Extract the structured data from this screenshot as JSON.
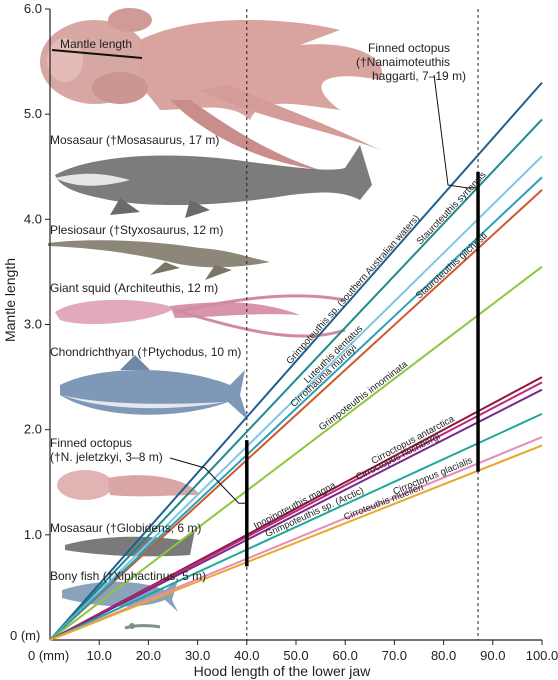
{
  "chart_data": {
    "type": "line",
    "xlabel": "Hood length of the lower jaw",
    "ylabel": "Mantle length",
    "x_origin_label": "0 (mm)",
    "y_origin_label": "0 (m)",
    "xlim": [
      0,
      100
    ],
    "ylim": [
      0,
      6
    ],
    "x_ticks": [
      "10.0",
      "20.0",
      "30.0",
      "40.0",
      "50.0",
      "60.0",
      "70.0",
      "80.0",
      "90.0",
      "100.0"
    ],
    "y_ticks": [
      "1.0",
      "2.0",
      "3.0",
      "4.0",
      "5.0",
      "6.0"
    ],
    "grid": false,
    "reference_lines_x": [
      40,
      87
    ],
    "series": [
      {
        "name": "Grimpoteuthis sp. (southern Australian waters)",
        "color": "#1f5f8f",
        "x": [
          0,
          100
        ],
        "y": [
          0,
          5.3
        ]
      },
      {
        "name": "Stauroteuthis syrtensis",
        "color": "#1e8a8a",
        "x": [
          0,
          100
        ],
        "y": [
          0,
          4.95
        ]
      },
      {
        "name": "Luteuthis dentatus",
        "color": "#7ec8e3",
        "x": [
          0,
          100
        ],
        "y": [
          0,
          4.6
        ]
      },
      {
        "name": "Stauroteuthis gilchristi",
        "color": "#d0572a",
        "x": [
          0,
          100
        ],
        "y": [
          0,
          4.28
        ]
      },
      {
        "name": "Cirrothauma murrayi",
        "color": "#2aa0b8",
        "x": [
          0,
          100
        ],
        "y": [
          0,
          4.4
        ]
      },
      {
        "name": "Grimpoteuthis innominata",
        "color": "#8cc63f",
        "x": [
          0,
          100
        ],
        "y": [
          0,
          3.55
        ]
      },
      {
        "name": "Cirroctopus antarctica",
        "color": "#8b1a3a",
        "x": [
          0,
          100
        ],
        "y": [
          0,
          2.5
        ]
      },
      {
        "name": "Inopinoteuthis magna",
        "color": "#c0267a",
        "x": [
          0,
          100
        ],
        "y": [
          0,
          2.45
        ]
      },
      {
        "name": "Cirroctopus hochbergi",
        "color": "#7a2a8a",
        "x": [
          0,
          100
        ],
        "y": [
          0,
          2.38
        ]
      },
      {
        "name": "Grimpoteuthis sp. (Arctic)",
        "color": "#1fa89a",
        "x": [
          0,
          100
        ],
        "y": [
          0,
          2.15
        ]
      },
      {
        "name": "Cirroctopus glacialis",
        "color": "#e58bb8",
        "x": [
          0,
          100
        ],
        "y": [
          0,
          1.93
        ]
      },
      {
        "name": "Cirroteuthis muelleri",
        "color": "#e8a82a",
        "x": [
          0,
          100
        ],
        "y": [
          0,
          1.85
        ]
      }
    ],
    "annotations": {
      "mantle_length": "Mantle length",
      "finned_octopus_top": [
        "Finned octopus",
        "(†Nanaimoteuthis",
        "haggarti, 7–19 m)"
      ],
      "finned_octopus_small": [
        "Finned octopus",
        "(†N. jeletzkyi, 3–8 m)"
      ],
      "animals": [
        {
          "label": "Mosasaur (†Mosasaurus, 17 m)"
        },
        {
          "label": "Plesiosaur (†Styxosaurus, 12 m)"
        },
        {
          "label": "Giant squid (Architeuthis, 12 m)"
        },
        {
          "label": "Chondrichthyan (†Ptychodus, 10 m)"
        },
        {
          "label": "Mosasaur (†Globidens, 6 m)"
        },
        {
          "label": "Bony fish (†Xiphactinus, 5 m)"
        }
      ]
    },
    "ranges": [
      {
        "x": 40,
        "y": [
          0.7,
          1.9
        ]
      },
      {
        "x": 87,
        "y": [
          1.6,
          4.45
        ]
      }
    ]
  }
}
